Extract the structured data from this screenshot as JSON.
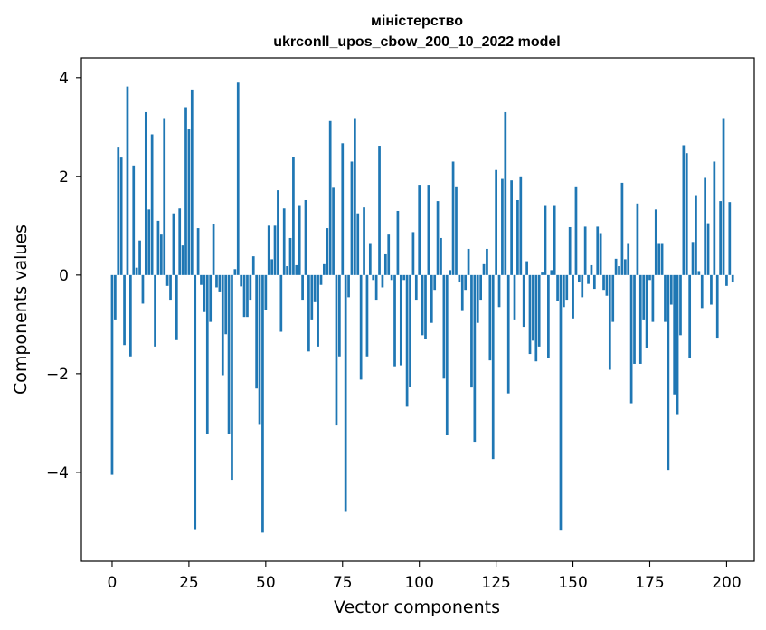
{
  "chart_data": {
    "type": "bar",
    "title_line1": "міністерство",
    "title_line2": "ukrconll_upos_cbow_200_10_2022 model",
    "xlabel": "Vector components",
    "ylabel": "Components values",
    "xlim": [
      -10,
      209
    ],
    "ylim": [
      -5.8,
      4.4
    ],
    "x_ticks": [
      0,
      25,
      50,
      75,
      100,
      125,
      150,
      175,
      200
    ],
    "y_ticks": [
      -4,
      -2,
      0,
      2,
      4
    ],
    "y_tick_labels": [
      "−4",
      "−2",
      "0",
      "2",
      "4"
    ],
    "bar_color": "#1f77b4",
    "grid": false,
    "values": [
      -4.05,
      -0.9,
      2.6,
      2.38,
      -1.42,
      3.82,
      -1.65,
      2.22,
      0.15,
      0.7,
      -0.58,
      3.3,
      1.33,
      2.85,
      -1.45,
      1.1,
      0.82,
      3.18,
      -0.22,
      -0.5,
      1.25,
      -1.32,
      1.35,
      0.6,
      3.4,
      2.95,
      3.76,
      -5.15,
      0.95,
      -0.2,
      -0.75,
      -3.22,
      -0.95,
      1.03,
      -0.25,
      -0.35,
      -2.03,
      -1.2,
      -3.22,
      -4.15,
      0.12,
      3.9,
      -0.23,
      -0.85,
      -0.85,
      -0.5,
      0.38,
      -2.3,
      -3.02,
      -5.22,
      -0.7,
      1.0,
      0.32,
      1.0,
      1.72,
      -1.15,
      1.35,
      0.18,
      0.75,
      2.4,
      0.2,
      1.4,
      -0.5,
      1.52,
      -1.55,
      -0.9,
      -0.55,
      -1.45,
      -0.2,
      0.22,
      0.95,
      3.12,
      1.77,
      -3.05,
      -1.65,
      2.67,
      -4.8,
      -0.45,
      2.3,
      3.18,
      1.25,
      -2.12,
      1.37,
      -1.65,
      0.63,
      -0.1,
      -0.5,
      2.62,
      -0.25,
      0.42,
      0.82,
      -0.1,
      -1.85,
      1.3,
      -1.83,
      -0.1,
      -2.67,
      -2.27,
      0.87,
      -0.5,
      1.83,
      -1.22,
      -1.3,
      1.83,
      -0.97,
      -0.3,
      1.5,
      0.75,
      -2.1,
      -3.25,
      0.1,
      2.3,
      1.78,
      -0.15,
      -0.73,
      -0.3,
      0.53,
      -2.28,
      -3.38,
      -0.97,
      -0.5,
      0.22,
      0.53,
      -1.73,
      -3.73,
      2.13,
      -0.65,
      1.95,
      3.3,
      -2.4,
      1.92,
      -0.9,
      1.52,
      2.0,
      -1.05,
      0.28,
      -1.6,
      -1.33,
      -1.75,
      -1.45,
      0.05,
      1.4,
      -1.68,
      0.1,
      1.4,
      -0.52,
      -5.18,
      -0.65,
      -0.5,
      0.97,
      -0.88,
      1.78,
      -0.15,
      -0.45,
      0.98,
      -0.18,
      0.2,
      -0.28,
      0.98,
      0.85,
      -0.3,
      -0.42,
      -1.92,
      -0.95,
      0.33,
      0.18,
      1.87,
      0.32,
      0.63,
      -2.6,
      -1.8,
      1.45,
      -1.8,
      -0.9,
      -1.48,
      -0.1,
      -0.95,
      1.33,
      0.63,
      0.63,
      -0.95,
      -3.95,
      -0.6,
      -2.42,
      -2.82,
      -1.22,
      2.63,
      2.47,
      -1.68,
      0.67,
      1.62,
      0.08,
      -0.67,
      1.97,
      1.05,
      -0.6,
      2.3,
      -1.27,
      1.5,
      3.18,
      -0.22,
      1.48,
      -0.15
    ]
  }
}
